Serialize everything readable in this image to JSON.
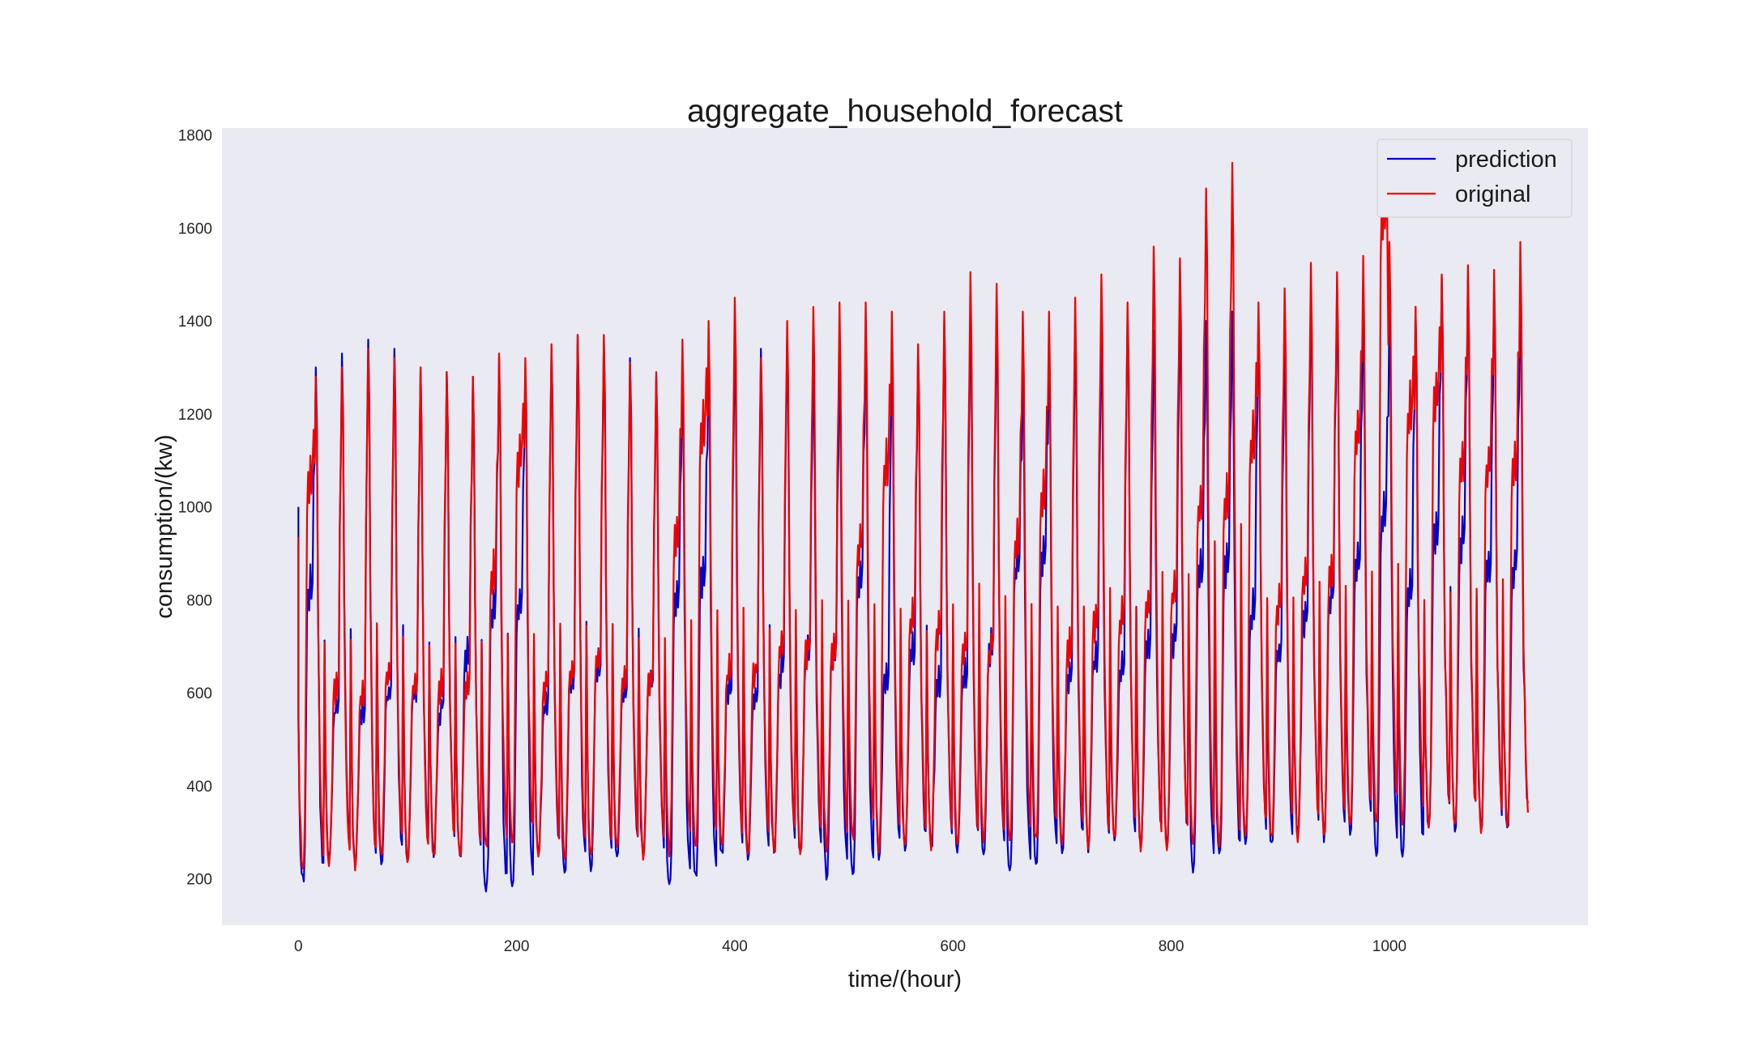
{
  "chart_data": {
    "type": "line",
    "title": "aggregate_household_forecast",
    "xlabel": "time/(hour)",
    "ylabel": "consumption/(kw)",
    "xlim": [
      -70,
      1182
    ],
    "ylim": [
      100,
      1815
    ],
    "xticks": [
      0,
      200,
      400,
      600,
      800,
      1000
    ],
    "yticks": [
      200,
      400,
      600,
      800,
      1000,
      1200,
      1400,
      1600,
      1800
    ],
    "grid": false,
    "background": "#eaeaf2",
    "legend_position": "top-right",
    "period_hours": 24,
    "x_sampling": "every 24 hours one cycle",
    "series": [
      {
        "name": "prediction",
        "color": "#0000cc",
        "daily_low": [
          195,
          240,
          225,
          230,
          245,
          255,
          240,
          175,
          190,
          245,
          220,
          230,
          250,
          240,
          190,
          205,
          245,
          240,
          250,
          250,
          205,
          215,
          245,
          255,
          270,
          255,
          245,
          215,
          235,
          255,
          265,
          270,
          265,
          265,
          225,
          240,
          275,
          265,
          295,
          290,
          295,
          260,
          250,
          305,
          310,
          305,
          310
        ],
        "daily_midday": [
          830,
          570,
          560,
          600,
          610,
          570,
          680,
          790,
          800,
          580,
          640,
          660,
          610,
          630,
          820,
          860,
          610,
          600,
          650,
          690,
          690,
          860,
          640,
          690,
          620,
          640,
          700,
          880,
          890,
          640,
          680,
          660,
          700,
          720,
          860,
          880,
          780,
          690,
          770,
          820,
          880,
          990,
          820,
          960,
          940,
          870,
          880
        ],
        "daily_peak": [
          1300,
          1330,
          1360,
          1340,
          1300,
          1290,
          1280,
          1320,
          1300,
          1340,
          1370,
          1360,
          1320,
          1280,
          1300,
          1320,
          1360,
          1340,
          1370,
          1310,
          1320,
          1380,
          1330,
          1340,
          1400,
          1440,
          1400,
          1310,
          1350,
          1390,
          1380,
          1420,
          1380,
          1435,
          1400,
          1420,
          1410,
          1370,
          1460,
          1480,
          1440,
          1420,
          1430,
          1495,
          1490,
          1480,
          1460
        ]
      },
      {
        "name": "original",
        "color": "#ee0000",
        "daily_low": [
          230,
          230,
          230,
          250,
          240,
          250,
          250,
          260,
          270,
          250,
          250,
          250,
          260,
          250,
          260,
          260,
          265,
          260,
          260,
          265,
          270,
          280,
          270,
          270,
          275,
          270,
          270,
          275,
          280,
          270,
          275,
          280,
          270,
          270,
          275,
          275,
          280,
          285,
          290,
          300,
          310,
          320,
          320,
          315,
          310,
          310,
          310
        ],
        "daily_midday": [
          1070,
          620,
          600,
          650,
          620,
          620,
          620,
          860,
          1110,
          620,
          650,
          680,
          640,
          630,
          950,
          1180,
          650,
          650,
          700,
          700,
          700,
          930,
          1090,
          770,
          740,
          700,
          700,
          930,
          1030,
          700,
          760,
          770,
          800,
          820,
          1010,
          1020,
          1150,
          800,
          860,
          860,
          1160,
          1650,
          1210,
          1250,
          1100,
          1100,
          1100
        ],
        "daily_peak": [
          1280,
          1300,
          1340,
          1320,
          1300,
          1290,
          1280,
          1330,
          1320,
          1350,
          1370,
          1370,
          1310,
          1290,
          1360,
          1400,
          1450,
          1320,
          1400,
          1430,
          1440,
          1440,
          1420,
          1350,
          1420,
          1505,
          1480,
          1420,
          1420,
          1450,
          1500,
          1440,
          1560,
          1535,
          1685,
          1740,
          1440,
          1470,
          1525,
          1505,
          1540,
          1570,
          1430,
          1500,
          1520,
          1510,
          1570
        ]
      }
    ]
  }
}
